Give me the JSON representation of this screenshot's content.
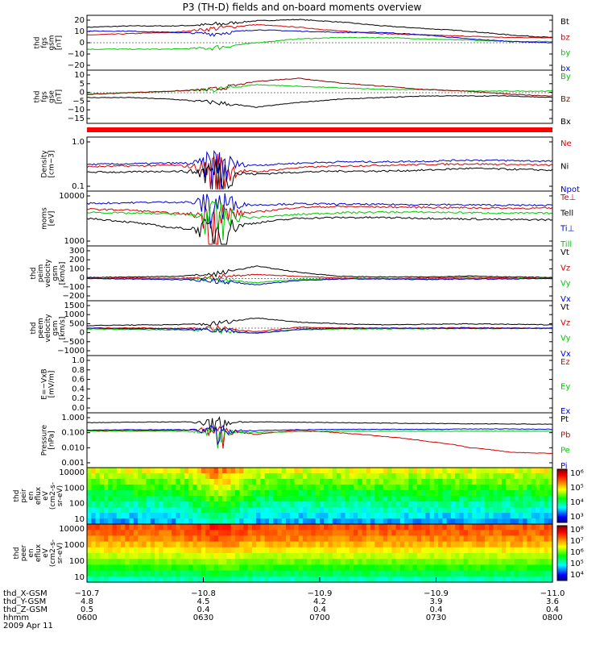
{
  "title": "P3 (TH-D) fields and on-board moments overview",
  "date": "2009 Apr 11",
  "time_range": [
    "0600",
    "0800"
  ],
  "chart_data": [
    {
      "type": "line",
      "ylabel": "thd\nfgs\ngsm\n[nT]",
      "ylim": [
        -20,
        20
      ],
      "yticks": [
        "20",
        "10",
        "0",
        "−10",
        "−20"
      ],
      "series": [
        {
          "name": "Bt",
          "color": "#000000",
          "values": [
            12,
            13,
            13,
            14,
            17,
            18,
            16,
            13,
            11,
            9,
            6,
            4
          ]
        },
        {
          "name": "bz",
          "color": "#d40000",
          "values": [
            6,
            7,
            8,
            11,
            14,
            12,
            9,
            7,
            6,
            5,
            4,
            4
          ]
        },
        {
          "name": "by",
          "color": "#00c800",
          "values": [
            -5,
            -5,
            -5,
            -4,
            0,
            3,
            4,
            4,
            3,
            2,
            1,
            1
          ]
        },
        {
          "name": "bx",
          "color": "#0000d4",
          "values": [
            9,
            9,
            8,
            7,
            10,
            9,
            8,
            8,
            6,
            3,
            1,
            0
          ]
        }
      ]
    },
    {
      "type": "line",
      "ylabel": "thd\nfgs\ngse\n[nT]",
      "ylim": [
        -18,
        13
      ],
      "yticks": [
        "10",
        "5",
        "0",
        "−5",
        "−10",
        "−15"
      ],
      "series": [
        {
          "name": "By",
          "color": "#00c800",
          "values": [
            -1,
            0,
            1,
            2,
            5,
            4,
            3,
            2,
            2,
            1,
            1,
            1
          ]
        },
        {
          "name": "Bz",
          "color": "#8b0000",
          "values": [
            -1,
            0,
            1,
            2,
            7,
            9,
            6,
            4,
            2,
            1,
            -1,
            -2
          ]
        },
        {
          "name": "Bx",
          "color": "#000000",
          "values": [
            -3,
            -3,
            -4,
            -6,
            -9,
            -6,
            -4,
            -3,
            -2,
            -2,
            -2,
            -3
          ]
        }
      ]
    },
    {
      "type": "line",
      "ylabel": "Density\n[cm−3]",
      "log": true,
      "ylim": [
        0.1,
        1.0
      ],
      "yticks": [
        "1.0",
        "0.1"
      ],
      "series": [
        {
          "name": "Ne",
          "color": "#d40000",
          "values": [
            0.28,
            0.29,
            0.3,
            0.26,
            0.22,
            0.27,
            0.29,
            0.3,
            0.31,
            0.32,
            0.31,
            0.3
          ]
        },
        {
          "name": "Ni",
          "color": "#000000",
          "values": [
            0.22,
            0.22,
            0.23,
            0.22,
            0.2,
            0.22,
            0.23,
            0.23,
            0.24,
            0.26,
            0.25,
            0.24
          ]
        },
        {
          "name": "Npot",
          "color": "#0000d4",
          "values": [
            0.31,
            0.32,
            0.33,
            0.32,
            0.3,
            0.33,
            0.35,
            0.35,
            0.36,
            0.38,
            0.37,
            0.36
          ]
        }
      ]
    },
    {
      "type": "line",
      "ylabel": "moms\n[eV]",
      "log": true,
      "ylim": [
        1000,
        10000
      ],
      "yticks": [
        "10000",
        "1000"
      ],
      "series": [
        {
          "name": "Te⊥",
          "color": "#d40000",
          "values": [
            4800,
            4600,
            4000,
            3600,
            4200,
            5200,
            5400,
            5300,
            5200,
            5100,
            5000,
            5000
          ]
        },
        {
          "name": "Tell",
          "color": "#000000",
          "values": [
            3200,
            2700,
            2100,
            1900,
            2600,
            3200,
            3300,
            3300,
            3200,
            3100,
            3000,
            3000
          ]
        },
        {
          "name": "Ti⊥",
          "color": "#0000d4",
          "values": [
            6200,
            6400,
            6600,
            6300,
            5800,
            6100,
            6000,
            5900,
            5900,
            5800,
            5700,
            5700
          ]
        },
        {
          "name": "Till",
          "color": "#00c800",
          "values": [
            4200,
            4000,
            3900,
            3400,
            3300,
            3800,
            4100,
            4200,
            4200,
            4100,
            4000,
            4000
          ]
        }
      ]
    },
    {
      "type": "line",
      "ylabel": "thd\npeim\nvelocity\ngsm\n[km/s]",
      "ylim": [
        -200,
        300
      ],
      "yticks": [
        "300",
        "200",
        "100",
        "0",
        "−100",
        "−200"
      ],
      "series": [
        {
          "name": "Vt",
          "color": "#000000",
          "values": [
            10,
            15,
            20,
            40,
            120,
            60,
            20,
            15,
            15,
            25,
            15,
            10
          ]
        },
        {
          "name": "Vz",
          "color": "#d40000",
          "values": [
            0,
            5,
            0,
            10,
            40,
            20,
            5,
            0,
            5,
            10,
            5,
            0
          ]
        },
        {
          "name": "Vy",
          "color": "#00c800",
          "values": [
            0,
            -5,
            0,
            -10,
            -40,
            -10,
            0,
            0,
            -5,
            0,
            0,
            0
          ]
        },
        {
          "name": "Vx",
          "color": "#0000d4",
          "values": [
            0,
            -5,
            -10,
            -20,
            -60,
            -20,
            -5,
            -5,
            -10,
            -5,
            -5,
            0
          ]
        }
      ]
    },
    {
      "type": "line",
      "ylabel": "thd\npeem\nvelocity\ngsm\n[km/s]",
      "ylim": [
        -1500,
        1500
      ],
      "yticks": [
        "1500",
        "1000",
        "500",
        "0",
        "−500",
        "−1000"
      ],
      "series": [
        {
          "name": "Vt",
          "color": "#000000",
          "values": [
            150,
            180,
            200,
            250,
            600,
            350,
            250,
            200,
            220,
            250,
            220,
            200
          ]
        },
        {
          "name": "Vz",
          "color": "#d40000",
          "values": [
            0,
            20,
            -20,
            0,
            -200,
            50,
            20,
            0,
            0,
            30,
            0,
            0
          ]
        },
        {
          "name": "Vy",
          "color": "#00c800",
          "values": [
            -50,
            -80,
            -100,
            -150,
            -300,
            -100,
            -50,
            -40,
            -40,
            -30,
            -20,
            -20
          ]
        },
        {
          "name": "Vx",
          "color": "#0000d4",
          "values": [
            0,
            -30,
            -40,
            -80,
            -300,
            -50,
            -20,
            0,
            0,
            0,
            -10,
            0
          ]
        }
      ]
    },
    {
      "type": "line",
      "ylabel": "E=−VxB\n[mV/m]",
      "ylim": [
        0,
        1.0
      ],
      "yticks": [
        "1.0",
        "0.8",
        "0.6",
        "0.4",
        "0.2",
        "0.0"
      ],
      "series": [
        {
          "name": "Ez",
          "color": "#d40000",
          "values": []
        },
        {
          "name": "Ey",
          "color": "#00c800",
          "values": []
        },
        {
          "name": "Ex",
          "color": "#0000d4",
          "values": []
        }
      ]
    },
    {
      "type": "line",
      "ylabel": "Pressure\n[nPa]",
      "log": true,
      "ylim": [
        0.0008,
        1.5
      ],
      "yticks": [
        "1.000",
        "0.100",
        "0.010",
        "0.001"
      ],
      "series": [
        {
          "name": "Pt",
          "color": "#000000",
          "values": [
            0.45,
            0.48,
            0.5,
            0.5,
            0.5,
            0.48,
            0.45,
            0.42,
            0.4,
            0.38,
            0.37,
            0.36
          ]
        },
        {
          "name": "Pb",
          "color": "#d40000",
          "values": [
            0.14,
            0.14,
            0.15,
            0.16,
            0.08,
            0.15,
            0.1,
            0.06,
            0.03,
            0.012,
            0.006,
            0.005
          ]
        },
        {
          "name": "Pe",
          "color": "#00c800",
          "values": [
            0.13,
            0.13,
            0.13,
            0.12,
            0.11,
            0.12,
            0.13,
            0.13,
            0.13,
            0.13,
            0.13,
            0.13
          ]
        },
        {
          "name": "Pi",
          "color": "#0000d4",
          "values": [
            0.15,
            0.16,
            0.16,
            0.15,
            0.14,
            0.16,
            0.17,
            0.17,
            0.17,
            0.18,
            0.18,
            0.17
          ]
        }
      ]
    },
    {
      "type": "heatmap",
      "ylabel": "thd\npeir\nen\neflux\neV\n(cm2-s-\nsr-eV)",
      "yticks": [
        "10000",
        "1000",
        "100",
        "10"
      ],
      "colorbar": [
        "10⁶",
        "10⁵",
        "10⁴",
        "10³"
      ]
    },
    {
      "type": "heatmap",
      "ylabel": "thd\npeer\nen\neflux\neV\n(cm2-s-\nsr-eV)",
      "yticks": [
        "10000",
        "1000",
        "100",
        "10"
      ],
      "colorbar": [
        "10⁸",
        "10⁷",
        "10⁶",
        "10⁵",
        "10⁴"
      ]
    }
  ],
  "x_axis": {
    "tick_times": [
      "0600",
      "0630",
      "0700",
      "0730",
      "0800"
    ],
    "rows": [
      {
        "label": "thd_X-GSM",
        "values": [
          "−10.7",
          "−10.8",
          "−10.9",
          "−10.9",
          "−11.0"
        ]
      },
      {
        "label": "thd_Y-GSM",
        "values": [
          "4.8",
          "4.5",
          "4.2",
          "3.9",
          "3.6"
        ]
      },
      {
        "label": "thd_Z-GSM",
        "values": [
          "0.5",
          "0.4",
          "0.4",
          "0.4",
          "0.4"
        ]
      },
      {
        "label": "hhmm",
        "values": [
          "0600",
          "0630",
          "0700",
          "0730",
          "0800"
        ]
      }
    ]
  }
}
